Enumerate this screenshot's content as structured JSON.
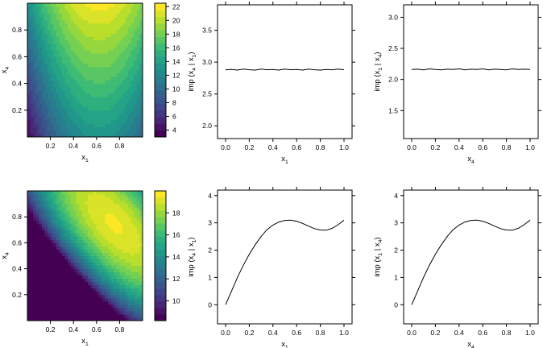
{
  "chart_data": [
    {
      "type": "heatmap",
      "id": "p1",
      "xlabel": "x",
      "xlabel_sub": "1",
      "ylabel": "x",
      "ylabel_sub": "4",
      "xlim": [
        0,
        1
      ],
      "ylim": [
        0,
        1
      ],
      "xticks": [
        "0.2",
        "0.4",
        "0.6",
        "0.8"
      ],
      "yticks": [
        "0.2",
        "0.4",
        "0.6",
        "0.8"
      ],
      "zlim": [
        3,
        22.5
      ],
      "colorbar_ticks": [
        "4",
        "6",
        "8",
        "10",
        "12",
        "14",
        "16",
        "18",
        "20",
        "22"
      ],
      "palette": [
        "#440154",
        "#482878",
        "#3e4a89",
        "#31688e",
        "#26828e",
        "#1f9e89",
        "#35b779",
        "#6ece58",
        "#b5de2b",
        "#fde725"
      ],
      "surface": "additive"
    },
    {
      "type": "line",
      "id": "p2",
      "xlabel": "x",
      "xlabel_sub": "1",
      "ylabel_parts": [
        "imp (x",
        "4",
        " | x",
        "1",
        ")"
      ],
      "xlim": [
        0,
        1
      ],
      "ylim": [
        1.8,
        3.9
      ],
      "xticks": [
        "0.0",
        "0.2",
        "0.4",
        "0.6",
        "0.8",
        "1.0"
      ],
      "yticks": [
        "2.0",
        "2.5",
        "3.0",
        "3.5"
      ],
      "series": [
        {
          "x": [
            0.0,
            0.05,
            0.1,
            0.15,
            0.2,
            0.25,
            0.3,
            0.35,
            0.4,
            0.45,
            0.5,
            0.55,
            0.6,
            0.65,
            0.7,
            0.75,
            0.8,
            0.85,
            0.9,
            0.95,
            1.0
          ],
          "y": [
            2.88,
            2.885,
            2.875,
            2.89,
            2.88,
            2.875,
            2.89,
            2.88,
            2.885,
            2.875,
            2.89,
            2.88,
            2.885,
            2.875,
            2.89,
            2.88,
            2.875,
            2.885,
            2.88,
            2.89,
            2.88
          ]
        }
      ]
    },
    {
      "type": "line",
      "id": "p3",
      "xlabel": "x",
      "xlabel_sub": "4",
      "ylabel_parts": [
        "imp (x",
        "1",
        " | x",
        "4",
        ")"
      ],
      "xlim": [
        0,
        1
      ],
      "ylim": [
        1.05,
        3.2
      ],
      "xticks": [
        "0.0",
        "0.2",
        "0.4",
        "0.6",
        "0.8",
        "1.0"
      ],
      "yticks": [
        "1.5",
        "2.0",
        "2.5",
        "3.0"
      ],
      "series": [
        {
          "x": [
            0.0,
            0.05,
            0.1,
            0.15,
            0.2,
            0.25,
            0.3,
            0.35,
            0.4,
            0.45,
            0.5,
            0.55,
            0.6,
            0.65,
            0.7,
            0.75,
            0.8,
            0.85,
            0.9,
            0.95,
            1.0
          ],
          "y": [
            2.16,
            2.165,
            2.155,
            2.17,
            2.16,
            2.155,
            2.165,
            2.16,
            2.17,
            2.155,
            2.165,
            2.16,
            2.17,
            2.155,
            2.165,
            2.16,
            2.155,
            2.17,
            2.16,
            2.165,
            2.16
          ]
        }
      ]
    },
    {
      "type": "heatmap",
      "id": "p4",
      "xlabel": "x",
      "xlabel_sub": "1",
      "ylabel": "x",
      "ylabel_sub": "4",
      "xlim": [
        0,
        1
      ],
      "ylim": [
        0,
        1
      ],
      "xticks": [
        "0.2",
        "0.4",
        "0.6",
        "0.8"
      ],
      "yticks": [
        "0.2",
        "0.4",
        "0.6",
        "0.8"
      ],
      "zlim": [
        8.2,
        20
      ],
      "colorbar_ticks": [
        "10",
        "12",
        "14",
        "16",
        "18"
      ],
      "palette": [
        "#440154",
        "#482878",
        "#3e4a89",
        "#31688e",
        "#26828e",
        "#1f9e89",
        "#35b779",
        "#6ece58",
        "#b5de2b",
        "#fde725"
      ],
      "surface": "interaction"
    },
    {
      "type": "line",
      "id": "p5",
      "xlabel": "x",
      "xlabel_sub": "1",
      "ylabel_parts": [
        "imp (x",
        "4",
        " | x",
        "1",
        ")"
      ],
      "xlim": [
        0,
        1
      ],
      "ylim": [
        -0.7,
        4.2
      ],
      "xticks": [
        "0.0",
        "0.2",
        "0.4",
        "0.6",
        "0.8",
        "1.0"
      ],
      "yticks": [
        "0",
        "1",
        "2",
        "3",
        "4"
      ],
      "series": [
        {
          "x": [
            0.0,
            0.05,
            0.1,
            0.15,
            0.2,
            0.25,
            0.3,
            0.35,
            0.4,
            0.45,
            0.5,
            0.55,
            0.6,
            0.65,
            0.7,
            0.75,
            0.8,
            0.85,
            0.9,
            0.95,
            1.0
          ],
          "y": [
            0.0,
            0.5,
            1.0,
            1.45,
            1.85,
            2.2,
            2.5,
            2.75,
            2.92,
            3.03,
            3.09,
            3.1,
            3.06,
            2.98,
            2.88,
            2.79,
            2.74,
            2.73,
            2.8,
            2.93,
            3.1
          ]
        }
      ]
    },
    {
      "type": "line",
      "id": "p6",
      "xlabel": "x",
      "xlabel_sub": "4",
      "ylabel_parts": [
        "imp (x",
        "1",
        " | x",
        "4",
        ")"
      ],
      "xlim": [
        0,
        1
      ],
      "ylim": [
        -0.7,
        4.2
      ],
      "xticks": [
        "0.0",
        "0.2",
        "0.4",
        "0.6",
        "0.8",
        "1.0"
      ],
      "yticks": [
        "0",
        "1",
        "2",
        "3",
        "4"
      ],
      "series": [
        {
          "x": [
            0.0,
            0.05,
            0.1,
            0.15,
            0.2,
            0.25,
            0.3,
            0.35,
            0.4,
            0.45,
            0.5,
            0.55,
            0.6,
            0.65,
            0.7,
            0.75,
            0.8,
            0.85,
            0.9,
            0.95,
            1.0
          ],
          "y": [
            0.0,
            0.5,
            1.0,
            1.45,
            1.85,
            2.2,
            2.5,
            2.75,
            2.92,
            3.03,
            3.09,
            3.1,
            3.06,
            2.98,
            2.88,
            2.79,
            2.74,
            2.73,
            2.8,
            2.93,
            3.1
          ]
        }
      ]
    }
  ]
}
